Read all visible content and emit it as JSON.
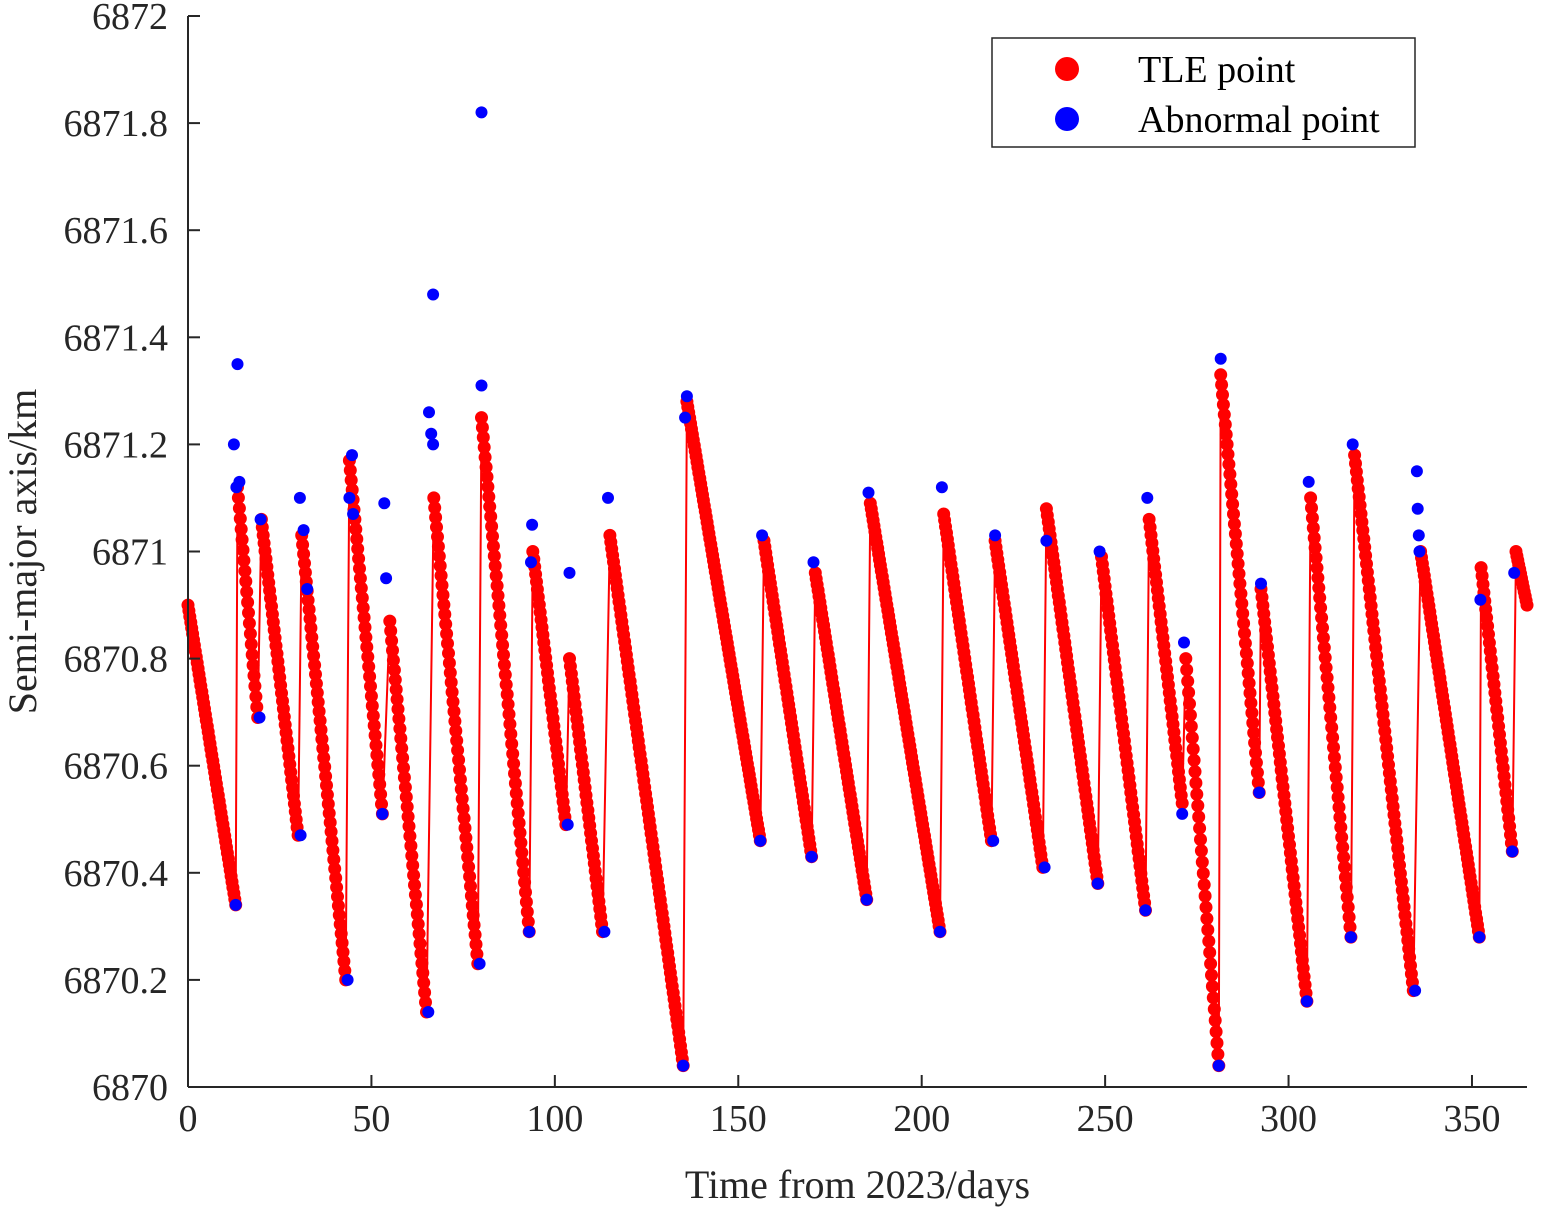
{
  "chart_data": {
    "type": "line",
    "title": "",
    "xlabel": "Time from 2023/days",
    "ylabel": "Semi-major axis/km",
    "xlim": [
      0,
      365
    ],
    "ylim": [
      6870,
      6872
    ],
    "xticks": [
      0,
      50,
      100,
      150,
      200,
      250,
      300,
      350
    ],
    "yticks": [
      6870,
      6870.2,
      6870.4,
      6870.6,
      6870.8,
      6871,
      6871.2,
      6871.4,
      6871.6,
      6871.8,
      6872
    ],
    "grid": false,
    "legend_position": "top-right",
    "colors": {
      "tle": "#ff0000",
      "abnormal": "#0000ff",
      "axis": "#262626"
    },
    "legend": [
      {
        "label": "TLE point",
        "color": "#ff0000"
      },
      {
        "label": "Abnormal point",
        "color": "#0000ff"
      }
    ],
    "tle_segments": [
      [
        [
          0,
          6870.9
        ],
        [
          13,
          6870.34
        ]
      ],
      [
        [
          13.5,
          6871.12
        ],
        [
          19,
          6870.69
        ]
      ],
      [
        [
          20,
          6871.06
        ],
        [
          30,
          6870.47
        ]
      ],
      [
        [
          31,
          6871.03
        ],
        [
          43,
          6870.2
        ]
      ],
      [
        [
          44,
          6871.17
        ],
        [
          53,
          6870.51
        ]
      ],
      [
        [
          55,
          6870.87
        ],
        [
          65,
          6870.14
        ]
      ],
      [
        [
          67,
          6871.1
        ],
        [
          79,
          6870.23
        ]
      ],
      [
        [
          80,
          6871.25
        ],
        [
          93,
          6870.29
        ]
      ],
      [
        [
          94,
          6871.0
        ],
        [
          103,
          6870.49
        ]
      ],
      [
        [
          104,
          6870.8
        ],
        [
          113,
          6870.29
        ]
      ],
      [
        [
          115,
          6871.03
        ],
        [
          135,
          6870.04
        ]
      ],
      [
        [
          136,
          6871.28
        ],
        [
          156,
          6870.46
        ]
      ],
      [
        [
          157,
          6871.02
        ],
        [
          170,
          6870.43
        ]
      ],
      [
        [
          171,
          6870.96
        ],
        [
          185,
          6870.35
        ]
      ],
      [
        [
          186,
          6871.09
        ],
        [
          205,
          6870.29
        ]
      ],
      [
        [
          206,
          6871.07
        ],
        [
          219,
          6870.46
        ]
      ],
      [
        [
          220,
          6871.02
        ],
        [
          233,
          6870.41
        ]
      ],
      [
        [
          234,
          6871.08
        ],
        [
          248,
          6870.38
        ]
      ],
      [
        [
          249,
          6870.99
        ],
        [
          261,
          6870.33
        ]
      ],
      [
        [
          262,
          6871.06
        ],
        [
          271,
          6870.53
        ]
      ],
      [
        [
          272,
          6870.8
        ],
        [
          281,
          6870.04
        ]
      ],
      [
        [
          281.5,
          6871.33
        ],
        [
          292,
          6870.55
        ]
      ],
      [
        [
          292.5,
          6870.93
        ],
        [
          305,
          6870.16
        ]
      ],
      [
        [
          306,
          6871.1
        ],
        [
          317,
          6870.28
        ]
      ],
      [
        [
          318,
          6871.18
        ],
        [
          334,
          6870.18
        ]
      ],
      [
        [
          336,
          6871.0
        ],
        [
          352,
          6870.28
        ]
      ],
      [
        [
          352.5,
          6870.97
        ],
        [
          361,
          6870.44
        ]
      ],
      [
        [
          362,
          6871.0
        ],
        [
          365,
          6870.9
        ]
      ]
    ],
    "abnormal_points": [
      [
        12.5,
        6871.2
      ],
      [
        13,
        6870.34
      ],
      [
        13.5,
        6871.35
      ],
      [
        14,
        6871.13
      ],
      [
        13.2,
        6871.12
      ],
      [
        19.5,
        6870.69
      ],
      [
        19.8,
        6871.06
      ],
      [
        30.5,
        6871.1
      ],
      [
        30.7,
        6870.47
      ],
      [
        31.5,
        6871.04
      ],
      [
        32.5,
        6870.93
      ],
      [
        43.5,
        6870.2
      ],
      [
        44,
        6871.1
      ],
      [
        44.7,
        6871.18
      ],
      [
        45,
        6871.07
      ],
      [
        53,
        6870.51
      ],
      [
        53.5,
        6871.09
      ],
      [
        54,
        6870.95
      ],
      [
        65.5,
        6870.14
      ],
      [
        65.7,
        6871.26
      ],
      [
        66.3,
        6871.22
      ],
      [
        66.8,
        6871.2
      ],
      [
        66.8,
        6871.48
      ],
      [
        79.5,
        6870.23
      ],
      [
        80,
        6871.31
      ],
      [
        80,
        6871.82
      ],
      [
        93,
        6870.29
      ],
      [
        93.5,
        6870.98
      ],
      [
        93.8,
        6871.05
      ],
      [
        103.5,
        6870.49
      ],
      [
        104,
        6870.96
      ],
      [
        113.5,
        6870.29
      ],
      [
        114.5,
        6871.1
      ],
      [
        135,
        6870.04
      ],
      [
        135.5,
        6871.25
      ],
      [
        136,
        6871.29
      ],
      [
        156,
        6870.46
      ],
      [
        156.5,
        6871.03
      ],
      [
        170,
        6870.43
      ],
      [
        170.5,
        6870.98
      ],
      [
        185,
        6870.35
      ],
      [
        185.5,
        6871.11
      ],
      [
        205,
        6870.29
      ],
      [
        205.5,
        6871.12
      ],
      [
        219.5,
        6870.46
      ],
      [
        220,
        6871.03
      ],
      [
        233.5,
        6870.41
      ],
      [
        234,
        6871.02
      ],
      [
        248,
        6870.38
      ],
      [
        248.5,
        6871.0
      ],
      [
        261,
        6870.33
      ],
      [
        261.5,
        6871.1
      ],
      [
        271,
        6870.51
      ],
      [
        271.5,
        6870.83
      ],
      [
        281,
        6870.04
      ],
      [
        281.5,
        6871.36
      ],
      [
        292,
        6870.55
      ],
      [
        292.5,
        6870.94
      ],
      [
        305,
        6870.16
      ],
      [
        305.5,
        6871.13
      ],
      [
        317,
        6870.28
      ],
      [
        317.5,
        6871.2
      ],
      [
        334.5,
        6870.18
      ],
      [
        335,
        6871.15
      ],
      [
        335.2,
        6871.08
      ],
      [
        335.5,
        6871.03
      ],
      [
        335.7,
        6871.0
      ],
      [
        352,
        6870.28
      ],
      [
        352.3,
        6870.91
      ],
      [
        361,
        6870.44
      ],
      [
        361.5,
        6870.96
      ]
    ]
  }
}
